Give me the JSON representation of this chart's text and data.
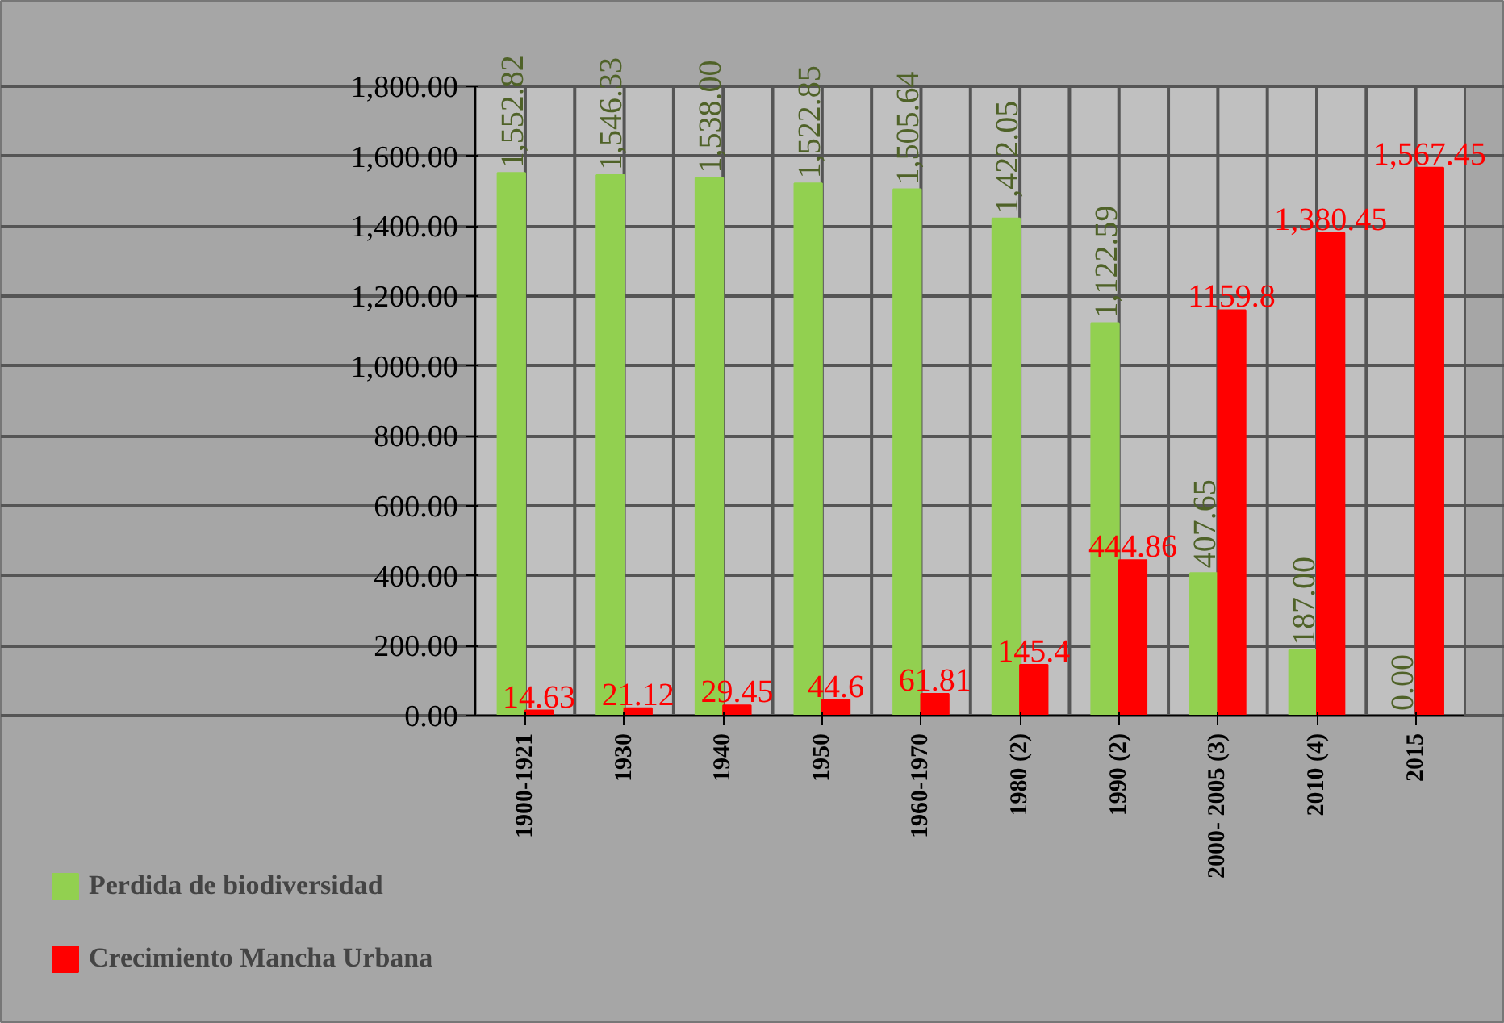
{
  "chart_data": {
    "type": "bar",
    "categories": [
      "1900-1921",
      "1930",
      "1940",
      "1950",
      "1960-1970",
      "1980 (2)",
      "1990 (2)",
      "2000- 2005 (3)",
      "2010 (4)",
      "2015"
    ],
    "series": [
      {
        "name": "Perdida de biodiversidad",
        "color": "#92d050",
        "values": [
          1552.82,
          1546.33,
          1538.0,
          1522.85,
          1505.64,
          1422.05,
          1122.59,
          407.65,
          187.0,
          0.0
        ],
        "value_labels": [
          "1,552.82",
          "1,546.33",
          "1,538.00",
          "1,522.85",
          "1,505.64",
          "1,422.05",
          "1,122.59",
          "407.65",
          "187.00",
          "0.00"
        ]
      },
      {
        "name": "Crecimiento Mancha Urbana",
        "color": "#ff0000",
        "values": [
          14.63,
          21.12,
          29.45,
          44.6,
          61.81,
          145.4,
          444.86,
          1159.8,
          1380.45,
          1567.45
        ],
        "value_labels": [
          "14.63",
          "21.12",
          "29.45",
          "44.6",
          "61.81",
          "145.4",
          "444.86",
          "1159.8",
          "1,380.45",
          "1,567.45"
        ]
      }
    ],
    "ylim": [
      0,
      1800
    ],
    "yticks": [
      {
        "value": 0,
        "label": "0.00"
      },
      {
        "value": 200,
        "label": "200.00"
      },
      {
        "value": 400,
        "label": "400.00"
      },
      {
        "value": 600,
        "label": "600.00"
      },
      {
        "value": 800,
        "label": "800.00"
      },
      {
        "value": 1000,
        "label": "1,000.00"
      },
      {
        "value": 1200,
        "label": "1,200.00"
      },
      {
        "value": 1400,
        "label": "1,400.00"
      },
      {
        "value": 1600,
        "label": "1,600.00"
      },
      {
        "value": 1800,
        "label": "1,800.00"
      }
    ],
    "grid": true,
    "legend": "bottom left"
  }
}
